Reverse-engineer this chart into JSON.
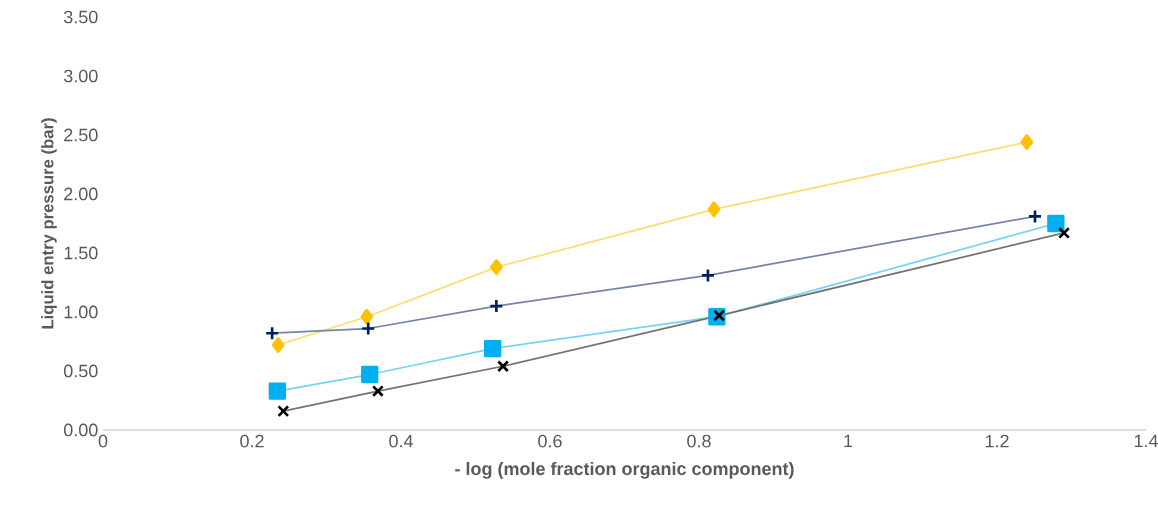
{
  "chart_data": {
    "type": "line",
    "xlabel": "- log (mole fraction organic component)",
    "ylabel": "Liquid entry pressure (bar)",
    "xlim": [
      0,
      1.4
    ],
    "xticks": [
      0,
      0.2,
      0.4,
      0.6,
      0.8,
      1,
      1.2,
      1.4
    ],
    "ylim": [
      0,
      3.5
    ],
    "yticks": [
      {
        "value": 0,
        "label": "0.00"
      },
      {
        "value": 0.5,
        "label": "0.50"
      },
      {
        "value": 1,
        "label": "1.00"
      },
      {
        "value": 1.5,
        "label": "1.50"
      },
      {
        "value": 2,
        "label": "2.00"
      },
      {
        "value": 2.5,
        "label": "2.50"
      },
      {
        "value": 3,
        "label": "3.00"
      },
      {
        "value": 3.5,
        "label": "3.50"
      }
    ],
    "grid": false,
    "series": [
      {
        "color": "#ffc000",
        "marker": "diamond",
        "x": [
          0.235,
          0.354,
          0.528,
          0.82,
          1.24
        ],
        "values": [
          0.72,
          0.96,
          1.38,
          1.87,
          2.44
        ]
      },
      {
        "color": "#002060",
        "marker": "plus",
        "x": [
          0.227,
          0.356,
          0.528,
          0.812,
          1.251
        ],
        "values": [
          0.82,
          0.86,
          1.05,
          1.31,
          1.81
        ]
      },
      {
        "color": "#00b0f0",
        "marker": "square",
        "x": [
          0.234,
          0.358,
          0.523,
          0.824,
          1.279
        ],
        "values": [
          0.33,
          0.47,
          0.69,
          0.96,
          1.75
        ]
      },
      {
        "color": "#000000",
        "marker": "cross",
        "x": [
          0.242,
          0.369,
          0.537,
          0.827,
          1.29
        ],
        "values": [
          0.16,
          0.33,
          0.54,
          0.97,
          1.67
        ]
      }
    ]
  }
}
